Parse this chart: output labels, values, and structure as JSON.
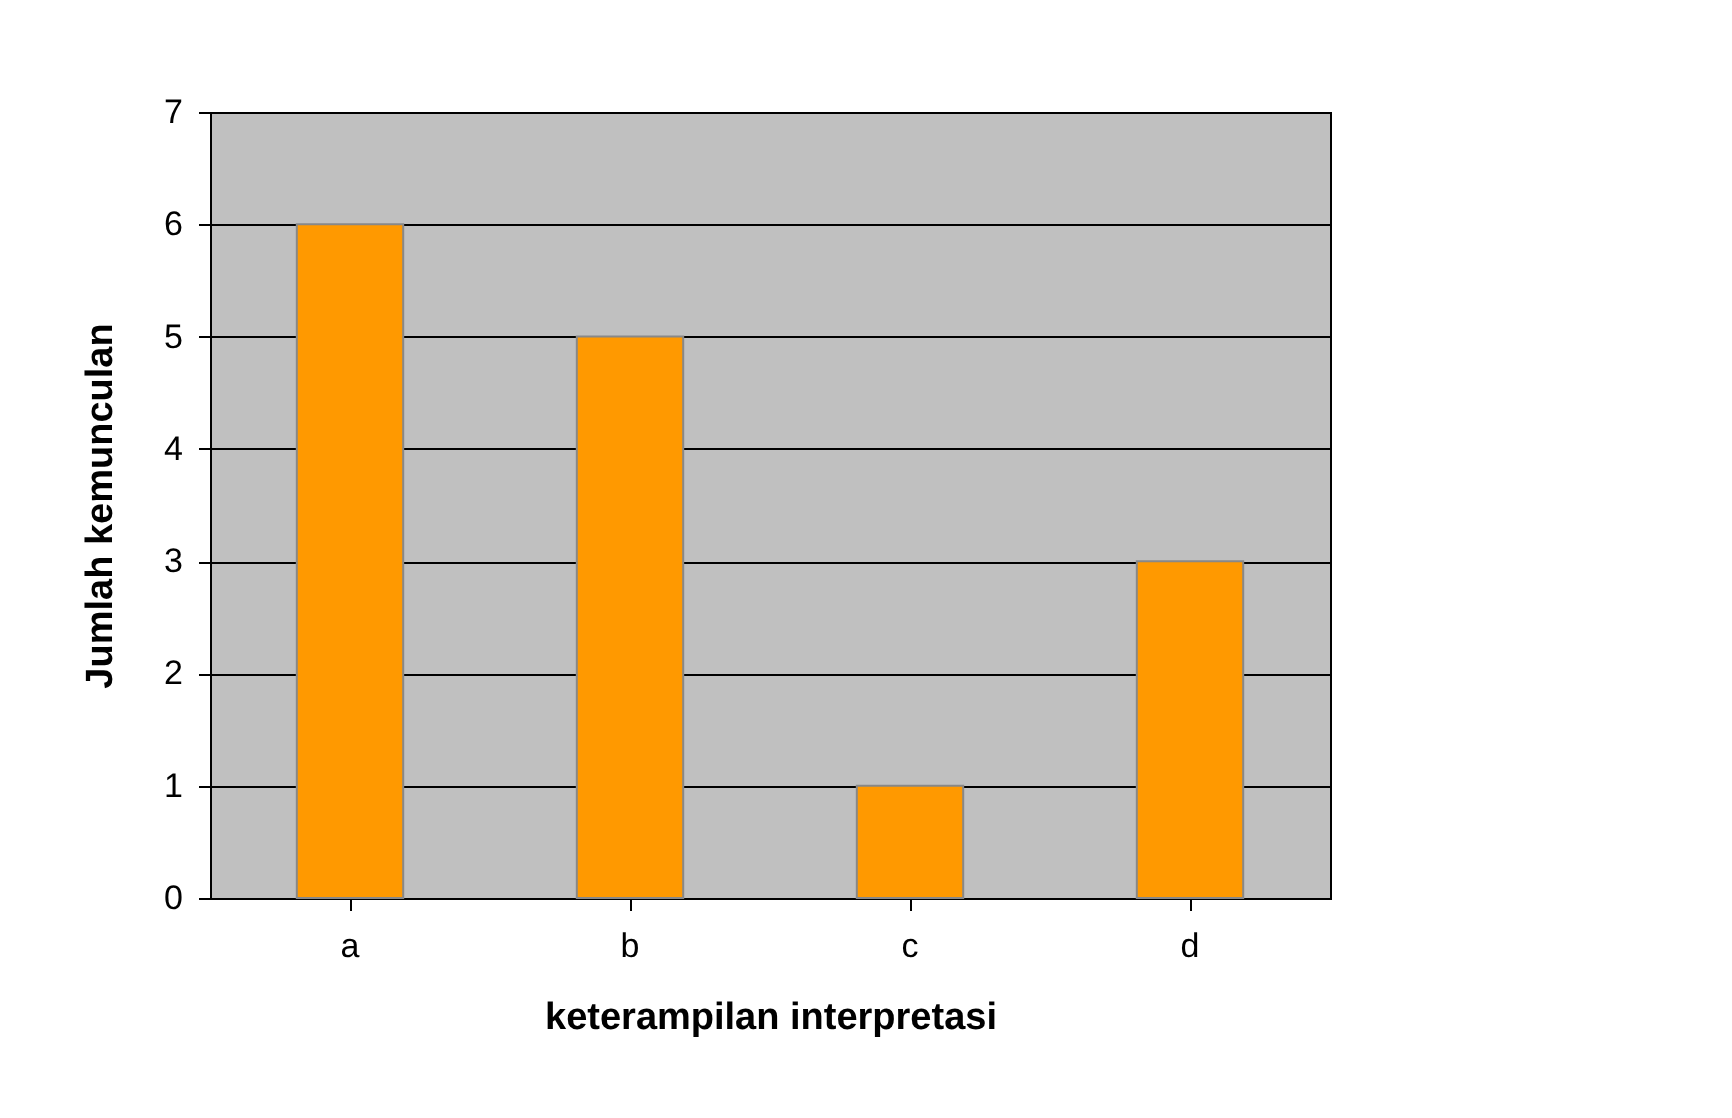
{
  "chart_data": {
    "type": "bar",
    "xlabel": "keterampilan interpretasi",
    "ylabel": "Jumlah kemunculan",
    "categories": [
      "a",
      "b",
      "c",
      "d"
    ],
    "values": [
      6,
      5,
      1,
      3
    ],
    "color": "#ff9900",
    "ylim": [
      0,
      7
    ],
    "yticks": [
      0,
      1,
      2,
      3,
      4,
      5,
      6,
      7
    ],
    "grid": "y"
  }
}
